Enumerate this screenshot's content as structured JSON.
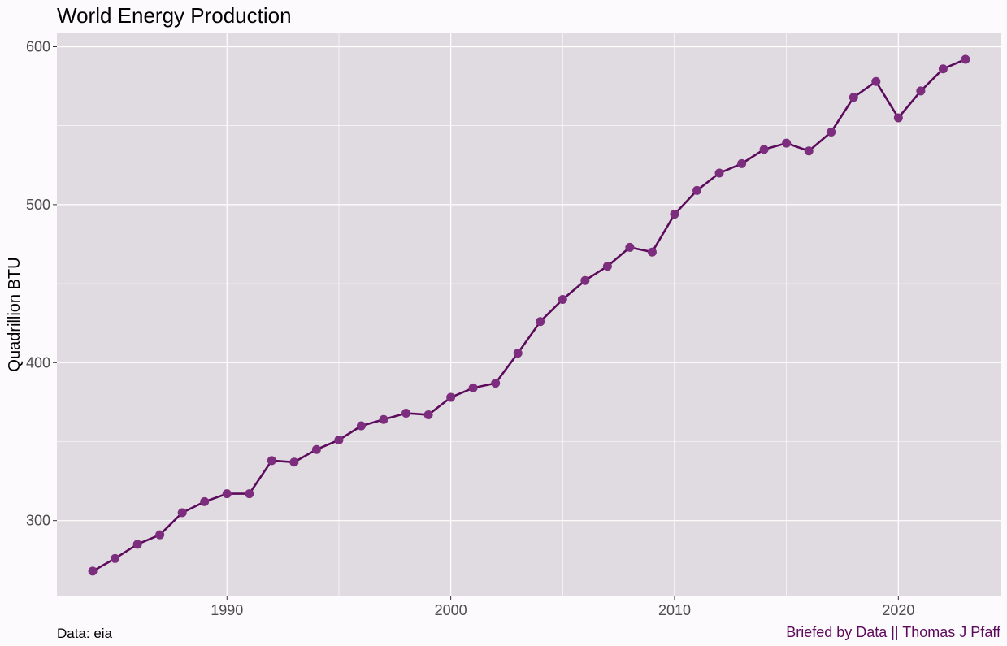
{
  "chart_data": {
    "type": "line",
    "title": "World Energy Production",
    "xlabel": "",
    "ylabel": "Quadrillion BTU",
    "xlim": [
      1982.4,
      2024.6
    ],
    "ylim": [
      252,
      609
    ],
    "x_ticks": [
      1990,
      2000,
      2010,
      2020
    ],
    "x_minor_ticks": [
      1985,
      1995,
      2005,
      2015
    ],
    "y_ticks": [
      300,
      400,
      500,
      600
    ],
    "y_minor_ticks": [
      350,
      450,
      550
    ],
    "grid": true,
    "line_color": "#5c0a5c",
    "point_color": "#7d2d7d",
    "panel_color": "#e0dbe0",
    "series": [
      {
        "x": [
          1984,
          1985,
          1986,
          1987,
          1988,
          1989,
          1990,
          1991,
          1992,
          1993,
          1994,
          1995,
          1996,
          1997,
          1998,
          1999,
          2000,
          2001,
          2002,
          2003,
          2004,
          2005,
          2006,
          2007,
          2008,
          2009,
          2010,
          2011,
          2012,
          2013,
          2014,
          2015,
          2016,
          2017,
          2018,
          2019,
          2020,
          2021,
          2022,
          2023
        ],
        "values": [
          268,
          276,
          285,
          291,
          305,
          312,
          317,
          317,
          338,
          337,
          345,
          351,
          360,
          364,
          368,
          367,
          378,
          384,
          387,
          406,
          426,
          440,
          452,
          461,
          473,
          470,
          494,
          509,
          520,
          526,
          535,
          539,
          534,
          546,
          568,
          578,
          555,
          572,
          586,
          592
        ]
      }
    ]
  },
  "captions": {
    "source": "Data: eia",
    "credit": "Briefed by Data || Thomas J Pfaff"
  }
}
